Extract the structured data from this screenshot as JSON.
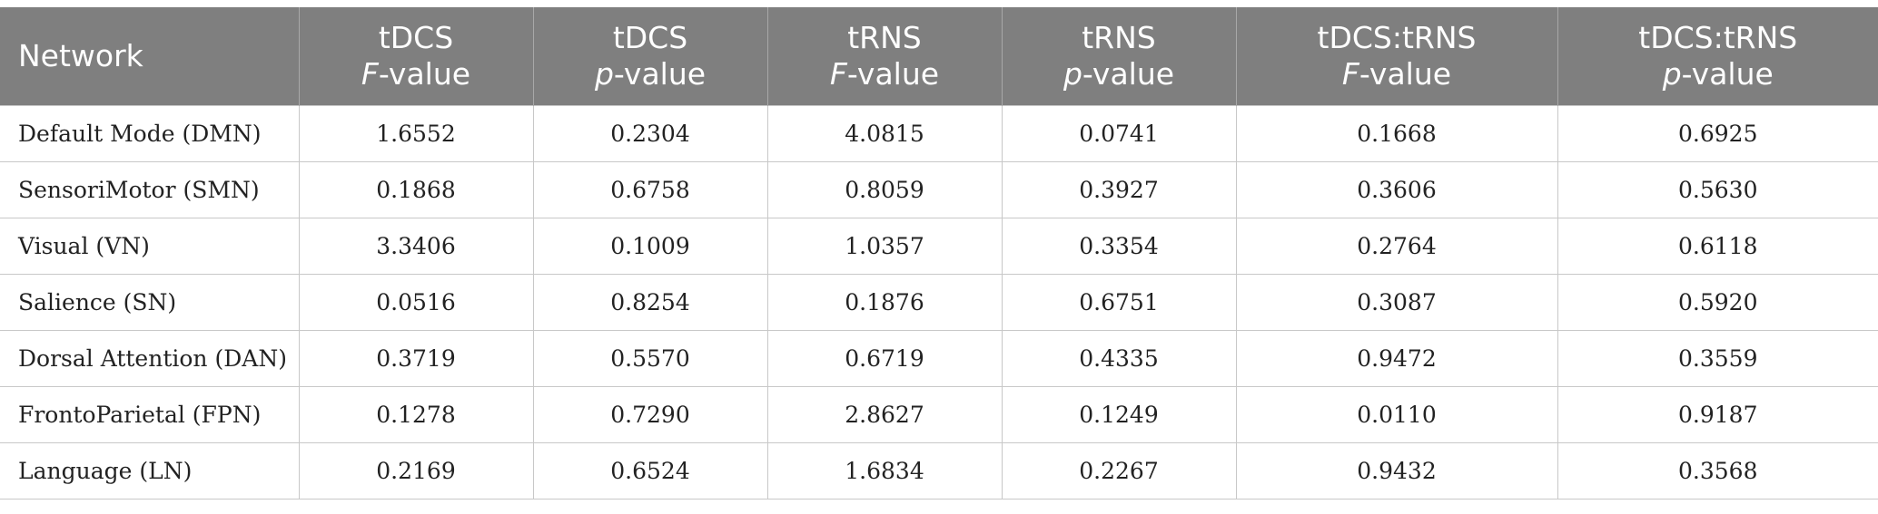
{
  "header": {
    "network": "Network",
    "columns": [
      {
        "line1": "tDCS",
        "stat_italic": "F",
        "stat_rest": "-value"
      },
      {
        "line1": "tDCS",
        "stat_italic": "p",
        "stat_rest": "-value"
      },
      {
        "line1": "tRNS",
        "stat_italic": "F",
        "stat_rest": "-value"
      },
      {
        "line1": "tRNS",
        "stat_italic": "p",
        "stat_rest": "-value"
      },
      {
        "line1": "tDCS:tRNS",
        "stat_italic": "F",
        "stat_rest": "-value"
      },
      {
        "line1": "tDCS:tRNS",
        "stat_italic": "p",
        "stat_rest": "-value"
      }
    ]
  },
  "rows": [
    {
      "network": "Default Mode (DMN)",
      "values": [
        "1.6552",
        "0.2304",
        "4.0815",
        "0.0741",
        "0.1668",
        "0.6925"
      ]
    },
    {
      "network": "SensoriMotor (SMN)",
      "values": [
        "0.1868",
        "0.6758",
        "0.8059",
        "0.3927",
        "0.3606",
        "0.5630"
      ]
    },
    {
      "network": "Visual (VN)",
      "values": [
        "3.3406",
        "0.1009",
        "1.0357",
        "0.3354",
        "0.2764",
        "0.6118"
      ]
    },
    {
      "network": "Salience (SN)",
      "values": [
        "0.0516",
        "0.8254",
        "0.1876",
        "0.6751",
        "0.3087",
        "0.5920"
      ]
    },
    {
      "network": "Dorsal Attention (DAN)",
      "values": [
        "0.3719",
        "0.5570",
        "0.6719",
        "0.4335",
        "0.9472",
        "0.3559"
      ]
    },
    {
      "network": "FrontoParietal (FPN)",
      "values": [
        "0.1278",
        "0.7290",
        "2.8627",
        "0.1249",
        "0.0110",
        "0.9187"
      ]
    },
    {
      "network": "Language (LN)",
      "values": [
        "0.2169",
        "0.6524",
        "1.6834",
        "0.2267",
        "0.9432",
        "0.3568"
      ]
    }
  ],
  "colors": {
    "header_bg": "#7f7f7f",
    "header_text": "#ffffff",
    "grid": "#c8c8c8"
  }
}
